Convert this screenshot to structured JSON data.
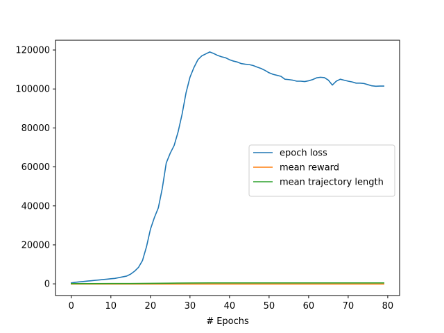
{
  "chart_data": {
    "type": "line",
    "title": "",
    "xlabel": "# Epochs",
    "ylabel": "",
    "xlim": [
      -4,
      83
    ],
    "ylim": [
      -6000,
      125000
    ],
    "xticks": [
      0,
      10,
      20,
      30,
      40,
      50,
      60,
      70,
      80
    ],
    "yticks": [
      0,
      20000,
      40000,
      60000,
      80000,
      100000,
      120000
    ],
    "grid": false,
    "legend_position": "center-right",
    "series": [
      {
        "name": "epoch loss",
        "color": "#1f77b4",
        "x": [
          0,
          1,
          2,
          3,
          4,
          5,
          6,
          7,
          8,
          9,
          10,
          11,
          12,
          13,
          14,
          15,
          16,
          17,
          18,
          19,
          20,
          21,
          22,
          23,
          24,
          25,
          26,
          27,
          28,
          29,
          30,
          31,
          32,
          33,
          34,
          35,
          36,
          37,
          38,
          39,
          40,
          41,
          42,
          43,
          44,
          45,
          46,
          47,
          48,
          49,
          50,
          51,
          52,
          53,
          54,
          55,
          56,
          57,
          58,
          59,
          60,
          61,
          62,
          63,
          64,
          65,
          66,
          67,
          68,
          69,
          70,
          71,
          72,
          73,
          74,
          75,
          76,
          77,
          78,
          79
        ],
        "values": [
          500,
          800,
          1000,
          1200,
          1400,
          1600,
          1800,
          2000,
          2200,
          2400,
          2600,
          2800,
          3200,
          3600,
          4000,
          5000,
          6500,
          8500,
          12000,
          19000,
          28000,
          34000,
          39000,
          49000,
          62000,
          67000,
          71000,
          78000,
          87000,
          98000,
          106000,
          111000,
          115000,
          117000,
          118000,
          119000,
          118200,
          117200,
          116500,
          116000,
          115000,
          114300,
          113800,
          113000,
          112700,
          112500,
          112000,
          111200,
          110500,
          109500,
          108300,
          107500,
          107000,
          106500,
          105000,
          104800,
          104500,
          104000,
          104000,
          103800,
          104200,
          104800,
          105700,
          106000,
          105800,
          104500,
          102000,
          104000,
          105000,
          104500,
          104000,
          103600,
          103000,
          103000,
          102800,
          102200,
          101600,
          101400,
          101500,
          101500
        ]
      },
      {
        "name": "mean reward",
        "color": "#ff7f0e",
        "x": [
          0,
          10,
          20,
          30,
          40,
          50,
          60,
          70,
          79
        ],
        "values": [
          -100,
          -100,
          -100,
          -100,
          -100,
          -100,
          -100,
          -100,
          -100
        ]
      },
      {
        "name": "mean trajectory length",
        "color": "#2ca02c",
        "x": [
          0,
          5,
          10,
          15,
          20,
          25,
          30,
          35,
          40,
          45,
          50,
          55,
          60,
          65,
          70,
          75,
          79
        ],
        "values": [
          100,
          120,
          150,
          180,
          250,
          350,
          430,
          480,
          480,
          480,
          480,
          480,
          480,
          480,
          480,
          480,
          480
        ]
      }
    ]
  }
}
